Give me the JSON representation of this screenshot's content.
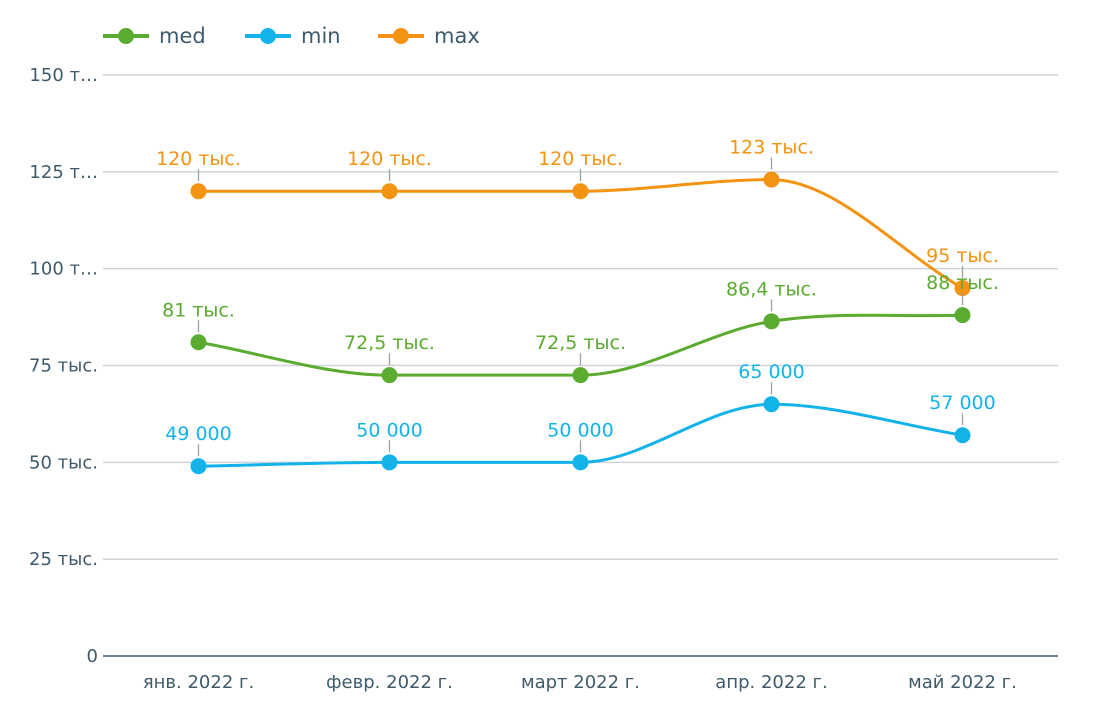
{
  "chart_data": {
    "type": "line",
    "categories": [
      "янв. 2022 г.",
      "февр. 2022 г.",
      "март 2022 г.",
      "апр. 2022 г.",
      "май 2022 г."
    ],
    "series": [
      {
        "name": "med",
        "color": "#5aab2f",
        "values": [
          81000,
          72500,
          72500,
          86400,
          88000
        ],
        "labels": [
          "81 тыс.",
          "72,5 тыс.",
          "72,5 тыс.",
          "86,4 тыс.",
          "88 тыс."
        ]
      },
      {
        "name": "min",
        "color": "#13b3ea",
        "values": [
          49000,
          50000,
          50000,
          65000,
          57000
        ],
        "labels": [
          "49 000",
          "50 000",
          "50 000",
          "65 000",
          "57 000"
        ]
      },
      {
        "name": "max",
        "color": "#f39312",
        "values": [
          120000,
          120000,
          120000,
          123000,
          95000
        ],
        "labels": [
          "120 тыс.",
          "120 тыс.",
          "120 тыс.",
          "123 тыс.",
          "95 тыс."
        ]
      }
    ],
    "y_ticks": [
      {
        "value": 0,
        "label": "0"
      },
      {
        "value": 25000,
        "label": "25 тыс."
      },
      {
        "value": 50000,
        "label": "50 тыс."
      },
      {
        "value": 75000,
        "label": "75 тыс."
      },
      {
        "value": 100000,
        "label": "100 т…"
      },
      {
        "value": 125000,
        "label": "125 т…"
      },
      {
        "value": 150000,
        "label": "150 т…"
      }
    ],
    "ylim": [
      0,
      150000
    ],
    "grid": true,
    "legend_position": "top-left",
    "smooth": true,
    "axis_color": "#3f5a6b",
    "grid_color": "#d0d4d8"
  }
}
